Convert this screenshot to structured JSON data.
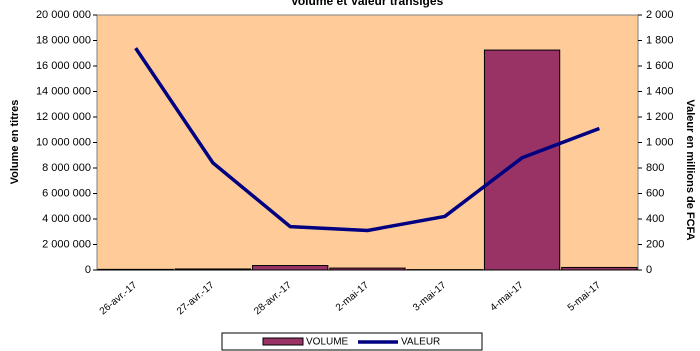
{
  "chart_data": {
    "type": "bar-line",
    "title": "Volume et Valeur transigés",
    "y_label": "Volume en titres",
    "y2_label": "Valeur en millions de FCFA",
    "categories": [
      "26-avr.-17",
      "27-avr.-17",
      "28-avr.-17",
      "2-mai-17",
      "3-mai-17",
      "4-mai-17",
      "5-mai-17"
    ],
    "series": [
      {
        "name": "VOLUME",
        "kind": "bar",
        "color": "#993366",
        "values": [
          50000,
          80000,
          350000,
          150000,
          30000,
          17250000,
          200000
        ]
      },
      {
        "name": "VALEUR",
        "kind": "line",
        "axis": "y2",
        "color": "#000080",
        "values": [
          1740,
          840,
          340,
          310,
          420,
          880,
          1110
        ]
      }
    ],
    "ylim": [
      0,
      20000000
    ],
    "yticks": [
      0,
      {
        "value": 2000000,
        "label": "2 000 000"
      },
      {
        "value": 4000000,
        "label": "4 000 000"
      },
      {
        "value": 6000000,
        "label": "6 000 000"
      },
      {
        "value": 8000000,
        "label": "8 000 000"
      },
      {
        "value": 10000000,
        "label": "10 000 000"
      },
      {
        "value": 12000000,
        "label": "12 000 000"
      },
      {
        "value": 14000000,
        "label": "14 000 000"
      },
      {
        "value": 16000000,
        "label": "16 000 000"
      },
      {
        "value": 18000000,
        "label": "18 000 000"
      },
      {
        "value": 20000000,
        "label": "20 000 000"
      }
    ],
    "y2lim": [
      0,
      2000
    ],
    "y2ticks": [
      0,
      200,
      400,
      600,
      800,
      {
        "value": 1000,
        "label": "1 000"
      },
      {
        "value": 1200,
        "label": "1 200"
      },
      {
        "value": 1400,
        "label": "1 400"
      },
      {
        "value": 1600,
        "label": "1 600"
      },
      {
        "value": 1800,
        "label": "1 800"
      },
      {
        "value": 2000,
        "label": "2 000"
      }
    ],
    "background": "#ffcc99"
  }
}
